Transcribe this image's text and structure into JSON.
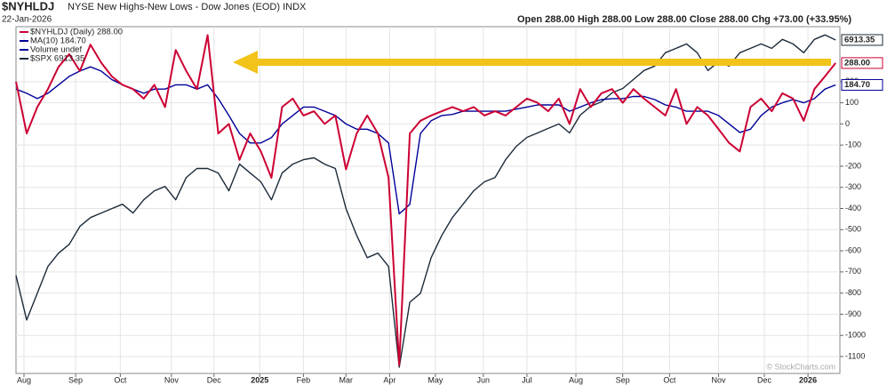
{
  "chart_data": {
    "type": "line",
    "title": "$NYHLDJ",
    "subtitle": "NYSE New Highs-New Lows - Dow Jones (EOD) INDX",
    "date": "22-Jan-2026",
    "quote": "Open 288.00 High 288.00 Low 288.00 Close 288.00 Chg +73.00 (+33.95%)",
    "credit": "© StockCharts.com",
    "legend_extra": [
      "Volume undef"
    ],
    "x": [
      0,
      1,
      2,
      3,
      4,
      5,
      6,
      7,
      8,
      9,
      10,
      11,
      12,
      13,
      14,
      15,
      16,
      17,
      18,
      19,
      20,
      21,
      22,
      23,
      24,
      25,
      26,
      27,
      28,
      29,
      30,
      31,
      32,
      33,
      34,
      35,
      36,
      37,
      38,
      39,
      40,
      41,
      42,
      43,
      44,
      45,
      46,
      47,
      48,
      49,
      50,
      51,
      52,
      53,
      54,
      55,
      56,
      57,
      58,
      59,
      60,
      61,
      62,
      63,
      64,
      65,
      66,
      67,
      68,
      69,
      70,
      71,
      72,
      73,
      74,
      75,
      76,
      77
    ],
    "xlim": [
      0,
      77.4
    ],
    "xticks": [
      {
        "value": 0.75,
        "label": "Aug"
      },
      {
        "value": 5.6,
        "label": "Sep"
      },
      {
        "value": 9.8,
        "label": "Oct"
      },
      {
        "value": 14.6,
        "label": "Nov"
      },
      {
        "value": 18.6,
        "label": "Dec"
      },
      {
        "value": 22.9,
        "label": "2025"
      },
      {
        "value": 27.0,
        "label": "Feb"
      },
      {
        "value": 31.0,
        "label": "Mar"
      },
      {
        "value": 35.1,
        "label": "Apr"
      },
      {
        "value": 39.4,
        "label": "May"
      },
      {
        "value": 43.9,
        "label": "Jun"
      },
      {
        "value": 48.0,
        "label": "Jul"
      },
      {
        "value": 52.6,
        "label": "Aug"
      },
      {
        "value": 57.0,
        "label": "Sep"
      },
      {
        "value": 61.4,
        "label": "Oct"
      },
      {
        "value": 66.0,
        "label": "Nov"
      },
      {
        "value": 70.3,
        "label": "Dec"
      },
      {
        "value": 74.4,
        "label": "2026"
      }
    ],
    "ylim": [
      -1180,
      460
    ],
    "yticks": [
      -1100,
      -1000,
      -900,
      -800,
      -700,
      -600,
      -500,
      -400,
      -300,
      -200,
      -100,
      0,
      100,
      200
    ],
    "y2lim": [
      4943,
      6992
    ],
    "grid": true,
    "series": [
      {
        "name": "$NYHLDJ (Daily) 288.00",
        "color": "#cc0033",
        "last_label": "288.00",
        "values": [
          200,
          -45,
          80,
          165,
          270,
          330,
          250,
          375,
          290,
          225,
          185,
          165,
          120,
          185,
          80,
          350,
          250,
          165,
          420,
          -45,
          0,
          -170,
          -45,
          -130,
          -255,
          80,
          120,
          40,
          60,
          0,
          40,
          -215,
          -45,
          40,
          -45,
          -255,
          -1140,
          -45,
          15,
          40,
          60,
          80,
          60,
          80,
          40,
          60,
          40,
          80,
          120,
          100,
          60,
          120,
          0,
          165,
          80,
          145,
          165,
          100,
          165,
          120,
          80,
          40,
          165,
          0,
          80,
          40,
          -25,
          -90,
          -130,
          80,
          120,
          60,
          145,
          120,
          15,
          165,
          225,
          288
        ]
      },
      {
        "name": "MA(10) 184.70",
        "color": "#000099",
        "last_label": "184.70",
        "values": [
          165,
          145,
          120,
          145,
          185,
          225,
          250,
          270,
          250,
          210,
          185,
          165,
          145,
          165,
          165,
          185,
          185,
          165,
          185,
          120,
          40,
          -45,
          -90,
          -90,
          -65,
          0,
          40,
          80,
          80,
          60,
          40,
          0,
          -25,
          -25,
          -45,
          -90,
          -425,
          -380,
          -45,
          15,
          40,
          45,
          60,
          60,
          60,
          60,
          60,
          70,
          80,
          90,
          90,
          90,
          60,
          80,
          100,
          115,
          120,
          120,
          130,
          130,
          115,
          90,
          80,
          60,
          60,
          60,
          40,
          0,
          -40,
          -25,
          40,
          80,
          100,
          115,
          100,
          120,
          165,
          184.7
        ]
      },
      {
        "name": "$SPX 6913.35",
        "color": "#1c2b3a",
        "axis": "y2",
        "last_label": "6913.35",
        "values": [
          5522,
          5259,
          5417,
          5575,
          5654,
          5706,
          5812,
          5864,
          5891,
          5917,
          5943,
          5891,
          5969,
          6022,
          6048,
          5969,
          6101,
          6154,
          6154,
          6127,
          6022,
          6180,
          6127,
          6075,
          5969,
          6127,
          6180,
          6206,
          6217,
          6180,
          6154,
          5917,
          5759,
          5627,
          5654,
          5575,
          4980,
          5364,
          5417,
          5627,
          5759,
          5864,
          5943,
          6022,
          6075,
          6101,
          6206,
          6285,
          6338,
          6364,
          6391,
          6417,
          6364,
          6469,
          6522,
          6548,
          6601,
          6627,
          6680,
          6733,
          6759,
          6838,
          6864,
          6890,
          6838,
          6733,
          6785,
          6759,
          6838,
          6864,
          6890,
          6864,
          6917,
          6890,
          6838,
          6917,
          6943,
          6913.35
        ]
      }
    ]
  }
}
